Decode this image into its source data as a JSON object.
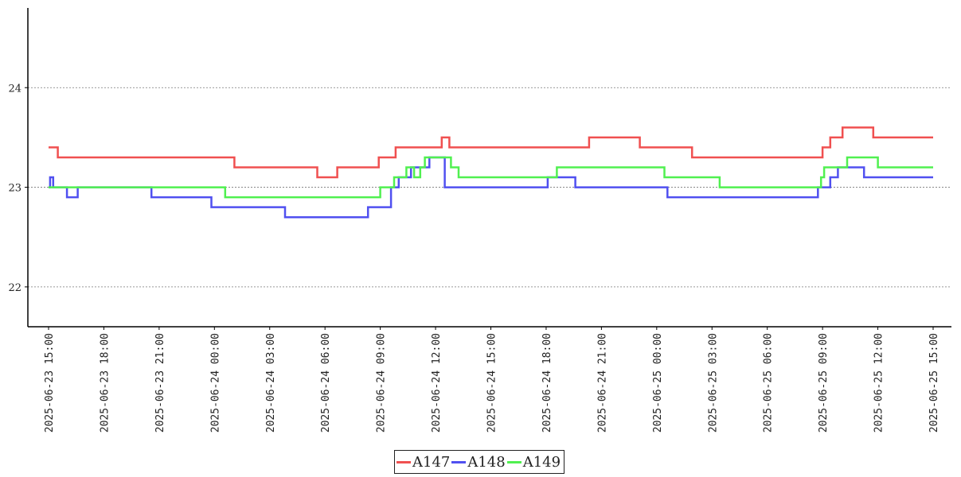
{
  "chart_data": {
    "type": "line",
    "title": "",
    "xlabel": "",
    "ylabel": "",
    "ylim": [
      21.6,
      24.8
    ],
    "yticks": [
      22,
      23,
      24
    ],
    "grid": "horizontal-dotted",
    "legend_position": "bottom-center",
    "x_ticks": [
      "2025-06-23 15:00",
      "2025-06-23 18:00",
      "2025-06-23 21:00",
      "2025-06-24 00:00",
      "2025-06-24 03:00",
      "2025-06-24 06:00",
      "2025-06-24 09:00",
      "2025-06-24 12:00",
      "2025-06-24 15:00",
      "2025-06-24 18:00",
      "2025-06-24 21:00",
      "2025-06-25 00:00",
      "2025-06-25 03:00",
      "2025-06-25 06:00",
      "2025-06-25 09:00",
      "2025-06-25 12:00",
      "2025-06-25 15:00"
    ],
    "x_range": [
      "2025-06-23 15:00",
      "2025-06-25 15:00"
    ],
    "series": [
      {
        "name": "A147",
        "color": "#f05050",
        "points": [
          [
            "2025-06-23 15:00",
            23.4
          ],
          [
            "2025-06-23 15:30",
            23.3
          ],
          [
            "2025-06-24 01:00",
            23.3
          ],
          [
            "2025-06-24 01:05",
            23.2
          ],
          [
            "2025-06-24 02:00",
            23.2
          ],
          [
            "2025-06-24 05:30",
            23.2
          ],
          [
            "2025-06-24 05:35",
            23.1
          ],
          [
            "2025-06-24 06:30",
            23.1
          ],
          [
            "2025-06-24 06:40",
            23.2
          ],
          [
            "2025-06-24 08:50",
            23.2
          ],
          [
            "2025-06-24 08:55",
            23.3
          ],
          [
            "2025-06-24 09:45",
            23.3
          ],
          [
            "2025-06-24 09:50",
            23.4
          ],
          [
            "2025-06-24 12:15",
            23.4
          ],
          [
            "2025-06-24 12:20",
            23.5
          ],
          [
            "2025-06-24 12:40",
            23.5
          ],
          [
            "2025-06-24 12:45",
            23.4
          ],
          [
            "2025-06-24 20:15",
            23.4
          ],
          [
            "2025-06-24 20:20",
            23.5
          ],
          [
            "2025-06-24 23:00",
            23.5
          ],
          [
            "2025-06-24 23:05",
            23.4
          ],
          [
            "2025-06-25 01:50",
            23.4
          ],
          [
            "2025-06-25 01:55",
            23.3
          ],
          [
            "2025-06-25 08:50",
            23.3
          ],
          [
            "2025-06-25 09:00",
            23.4
          ],
          [
            "2025-06-25 09:20",
            23.4
          ],
          [
            "2025-06-25 09:25",
            23.5
          ],
          [
            "2025-06-25 10:00",
            23.5
          ],
          [
            "2025-06-25 10:05",
            23.6
          ],
          [
            "2025-06-25 11:40",
            23.6
          ],
          [
            "2025-06-25 11:45",
            23.5
          ],
          [
            "2025-06-25 15:00",
            23.5
          ]
        ]
      },
      {
        "name": "A148",
        "color": "#5050f0",
        "points": [
          [
            "2025-06-23 15:00",
            23.0
          ],
          [
            "2025-06-23 15:05",
            23.1
          ],
          [
            "2025-06-23 15:15",
            23.0
          ],
          [
            "2025-06-23 15:30",
            23.0
          ],
          [
            "2025-06-23 16:00",
            22.9
          ],
          [
            "2025-06-23 16:30",
            22.9
          ],
          [
            "2025-06-23 16:35",
            23.0
          ],
          [
            "2025-06-23 20:30",
            23.0
          ],
          [
            "2025-06-23 20:35",
            22.9
          ],
          [
            "2025-06-23 23:45",
            22.9
          ],
          [
            "2025-06-23 23:50",
            22.8
          ],
          [
            "2025-06-24 03:45",
            22.8
          ],
          [
            "2025-06-24 03:50",
            22.7
          ],
          [
            "2025-06-24 08:15",
            22.7
          ],
          [
            "2025-06-24 08:20",
            22.8
          ],
          [
            "2025-06-24 09:30",
            22.8
          ],
          [
            "2025-06-24 09:35",
            23.0
          ],
          [
            "2025-06-24 09:55",
            23.0
          ],
          [
            "2025-06-24 10:00",
            23.1
          ],
          [
            "2025-06-24 10:30",
            23.1
          ],
          [
            "2025-06-24 10:40",
            23.2
          ],
          [
            "2025-06-24 11:30",
            23.2
          ],
          [
            "2025-06-24 11:40",
            23.3
          ],
          [
            "2025-06-24 12:10",
            23.3
          ],
          [
            "2025-06-24 12:30",
            23.0
          ],
          [
            "2025-06-24 18:00",
            23.0
          ],
          [
            "2025-06-24 18:05",
            23.1
          ],
          [
            "2025-06-24 19:30",
            23.1
          ],
          [
            "2025-06-24 19:35",
            23.0
          ],
          [
            "2025-06-25 00:30",
            23.0
          ],
          [
            "2025-06-25 00:35",
            22.9
          ],
          [
            "2025-06-25 08:40",
            22.9
          ],
          [
            "2025-06-25 08:45",
            23.0
          ],
          [
            "2025-06-25 09:20",
            23.0
          ],
          [
            "2025-06-25 09:25",
            23.1
          ],
          [
            "2025-06-25 09:45",
            23.1
          ],
          [
            "2025-06-25 09:50",
            23.2
          ],
          [
            "2025-06-25 11:10",
            23.2
          ],
          [
            "2025-06-25 11:15",
            23.1
          ],
          [
            "2025-06-25 15:00",
            23.1
          ]
        ]
      },
      {
        "name": "A149",
        "color": "#50f050",
        "points": [
          [
            "2025-06-23 15:00",
            23.0
          ],
          [
            "2025-06-23 16:40",
            23.0
          ],
          [
            "2025-06-23 21:40",
            23.0
          ],
          [
            "2025-06-23 22:30",
            23.0
          ],
          [
            "2025-06-23 22:35",
            23.0
          ],
          [
            "2025-06-24 00:30",
            23.0
          ],
          [
            "2025-06-24 00:35",
            22.9
          ],
          [
            "2025-06-24 03:00",
            22.9
          ],
          [
            "2025-06-24 08:55",
            22.9
          ],
          [
            "2025-06-24 09:00",
            23.0
          ],
          [
            "2025-06-24 09:40",
            23.0
          ],
          [
            "2025-06-24 09:45",
            23.1
          ],
          [
            "2025-06-24 10:20",
            23.1
          ],
          [
            "2025-06-24 10:25",
            23.2
          ],
          [
            "2025-06-24 10:45",
            23.2
          ],
          [
            "2025-06-24 10:50",
            23.1
          ],
          [
            "2025-06-24 11:00",
            23.1
          ],
          [
            "2025-06-24 11:10",
            23.2
          ],
          [
            "2025-06-24 11:20",
            23.2
          ],
          [
            "2025-06-24 11:25",
            23.3
          ],
          [
            "2025-06-24 12:45",
            23.3
          ],
          [
            "2025-06-24 12:50",
            23.2
          ],
          [
            "2025-06-24 13:10",
            23.2
          ],
          [
            "2025-06-24 13:15",
            23.1
          ],
          [
            "2025-06-24 18:30",
            23.1
          ],
          [
            "2025-06-24 18:35",
            23.2
          ],
          [
            "2025-06-25 00:20",
            23.2
          ],
          [
            "2025-06-25 00:25",
            23.1
          ],
          [
            "2025-06-25 03:20",
            23.1
          ],
          [
            "2025-06-25 03:25",
            23.0
          ],
          [
            "2025-06-25 08:50",
            23.0
          ],
          [
            "2025-06-25 08:55",
            23.1
          ],
          [
            "2025-06-25 09:00",
            23.1
          ],
          [
            "2025-06-25 09:05",
            23.2
          ],
          [
            "2025-06-25 10:15",
            23.2
          ],
          [
            "2025-06-25 10:20",
            23.3
          ],
          [
            "2025-06-25 11:55",
            23.3
          ],
          [
            "2025-06-25 12:00",
            23.2
          ],
          [
            "2025-06-25 15:00",
            23.2
          ]
        ]
      }
    ]
  }
}
